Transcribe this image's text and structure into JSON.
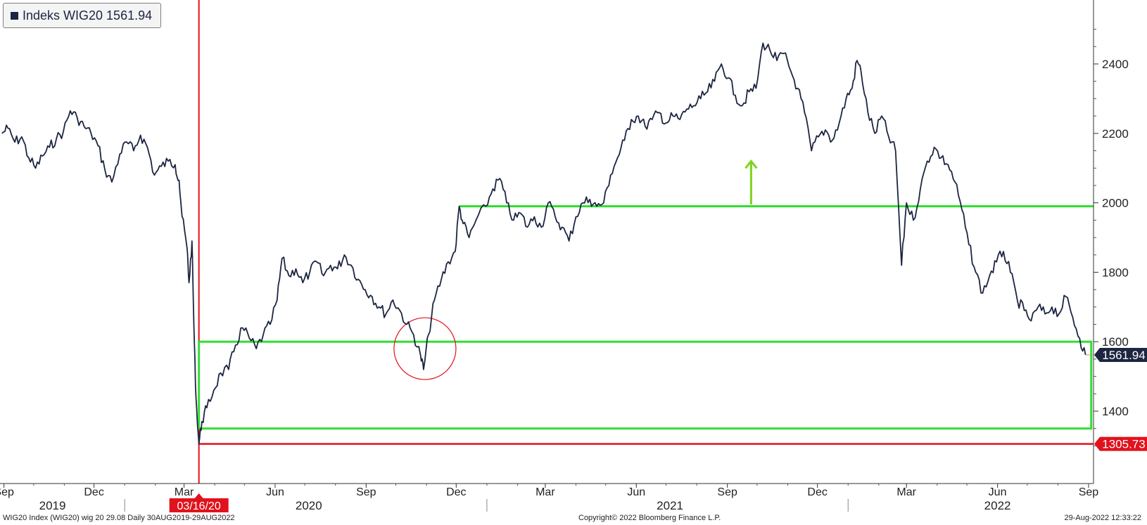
{
  "legend": {
    "label": "Indeks WIG20 1561.94"
  },
  "footer": {
    "left": "WIG20 Index (WIG20) wig 20 29.08  Daily 30AUG2019-29AUG2022",
    "center": "Copyright© 2022 Bloomberg Finance L.P.",
    "right": "29-Aug-2022 12:33:22"
  },
  "colors": {
    "series": "#1c2541",
    "support_box": "#33dd33",
    "low_line": "#e0121c",
    "event_marker": "#e0121c",
    "arrow": "#7ed321",
    "last_price_tag": "#1c2541",
    "low_tag": "#e0121c"
  },
  "annotations": {
    "event_date_label": "03/16/20",
    "last_price_label": "1561.94",
    "low_label": "1305.73"
  },
  "chart_data": {
    "type": "line",
    "title": "",
    "xlabel": "",
    "ylabel": "",
    "x_range": [
      "2019-08-30",
      "2022-08-29"
    ],
    "ylim": [
      1300,
      2500
    ],
    "yticks": [
      1400,
      1600,
      1800,
      2000,
      2200,
      2400
    ],
    "month_ticks": [
      {
        "label": "Sep",
        "date": "2019-09-01"
      },
      {
        "label": "Dec",
        "date": "2019-12-01"
      },
      {
        "label": "Mar",
        "date": "2020-03-01"
      },
      {
        "label": "Jun",
        "date": "2020-06-01"
      },
      {
        "label": "Sep",
        "date": "2020-09-01"
      },
      {
        "label": "Dec",
        "date": "2020-12-01"
      },
      {
        "label": "Mar",
        "date": "2021-03-01"
      },
      {
        "label": "Jun",
        "date": "2021-06-01"
      },
      {
        "label": "Sep",
        "date": "2021-09-01"
      },
      {
        "label": "Dec",
        "date": "2021-12-01"
      },
      {
        "label": "Mar",
        "date": "2022-03-01"
      },
      {
        "label": "Jun",
        "date": "2022-06-01"
      },
      {
        "label": "Sep",
        "date": "2022-09-01"
      }
    ],
    "year_labels": [
      {
        "label": "2019",
        "date": "2019-10-20"
      },
      {
        "label": "2020",
        "date": "2020-07-05"
      },
      {
        "label": "2021",
        "date": "2021-07-05"
      },
      {
        "label": "2022",
        "date": "2022-06-01"
      }
    ],
    "year_boundaries": [
      "2020-01-01",
      "2021-01-01",
      "2022-01-01"
    ],
    "series": [
      {
        "name": "Indeks WIG20",
        "points": [
          [
            "2019-08-30",
            2200
          ],
          [
            "2019-09-05",
            2215
          ],
          [
            "2019-09-12",
            2175
          ],
          [
            "2019-09-19",
            2190
          ],
          [
            "2019-09-26",
            2130
          ],
          [
            "2019-10-03",
            2100
          ],
          [
            "2019-10-10",
            2135
          ],
          [
            "2019-10-17",
            2160
          ],
          [
            "2019-10-24",
            2185
          ],
          [
            "2019-10-31",
            2205
          ],
          [
            "2019-11-07",
            2265
          ],
          [
            "2019-11-14",
            2245
          ],
          [
            "2019-11-21",
            2220
          ],
          [
            "2019-11-28",
            2200
          ],
          [
            "2019-12-05",
            2165
          ],
          [
            "2019-12-12",
            2095
          ],
          [
            "2019-12-19",
            2060
          ],
          [
            "2019-12-27",
            2140
          ],
          [
            "2020-01-03",
            2175
          ],
          [
            "2020-01-10",
            2150
          ],
          [
            "2020-01-17",
            2195
          ],
          [
            "2020-01-24",
            2160
          ],
          [
            "2020-01-31",
            2080
          ],
          [
            "2020-02-07",
            2105
          ],
          [
            "2020-02-14",
            2120
          ],
          [
            "2020-02-21",
            2110
          ],
          [
            "2020-02-25",
            2065
          ],
          [
            "2020-02-28",
            1960
          ],
          [
            "2020-03-04",
            1870
          ],
          [
            "2020-03-06",
            1770
          ],
          [
            "2020-03-09",
            1890
          ],
          [
            "2020-03-11",
            1640
          ],
          [
            "2020-03-13",
            1440
          ],
          [
            "2020-03-16",
            1305.73
          ],
          [
            "2020-03-19",
            1370
          ],
          [
            "2020-03-24",
            1410
          ],
          [
            "2020-03-31",
            1460
          ],
          [
            "2020-04-07",
            1510
          ],
          [
            "2020-04-15",
            1520
          ],
          [
            "2020-04-22",
            1590
          ],
          [
            "2020-04-29",
            1640
          ],
          [
            "2020-05-06",
            1610
          ],
          [
            "2020-05-13",
            1580
          ],
          [
            "2020-05-20",
            1620
          ],
          [
            "2020-05-27",
            1650
          ],
          [
            "2020-06-03",
            1720
          ],
          [
            "2020-06-08",
            1840
          ],
          [
            "2020-06-15",
            1790
          ],
          [
            "2020-06-22",
            1810
          ],
          [
            "2020-06-29",
            1770
          ],
          [
            "2020-07-06",
            1800
          ],
          [
            "2020-07-13",
            1830
          ],
          [
            "2020-07-20",
            1790
          ],
          [
            "2020-07-27",
            1820
          ],
          [
            "2020-08-03",
            1810
          ],
          [
            "2020-08-10",
            1850
          ],
          [
            "2020-08-17",
            1820
          ],
          [
            "2020-08-24",
            1780
          ],
          [
            "2020-08-31",
            1750
          ],
          [
            "2020-09-07",
            1730
          ],
          [
            "2020-09-14",
            1700
          ],
          [
            "2020-09-21",
            1680
          ],
          [
            "2020-09-28",
            1720
          ],
          [
            "2020-10-05",
            1690
          ],
          [
            "2020-10-12",
            1650
          ],
          [
            "2020-10-19",
            1620
          ],
          [
            "2020-10-26",
            1560
          ],
          [
            "2020-10-29",
            1520
          ],
          [
            "2020-11-03",
            1620
          ],
          [
            "2020-11-09",
            1720
          ],
          [
            "2020-11-16",
            1780
          ],
          [
            "2020-11-23",
            1830
          ],
          [
            "2020-11-30",
            1860
          ],
          [
            "2020-12-04",
            1990
          ],
          [
            "2020-12-08",
            1940
          ],
          [
            "2020-12-14",
            1900
          ],
          [
            "2020-12-21",
            1950
          ],
          [
            "2020-12-31",
            1990
          ],
          [
            "2021-01-07",
            2040
          ],
          [
            "2021-01-14",
            2070
          ],
          [
            "2021-01-21",
            2000
          ],
          [
            "2021-01-28",
            1950
          ],
          [
            "2021-02-04",
            1970
          ],
          [
            "2021-02-11",
            1930
          ],
          [
            "2021-02-18",
            1960
          ],
          [
            "2021-02-25",
            1930
          ],
          [
            "2021-03-04",
            2000
          ],
          [
            "2021-03-11",
            1960
          ],
          [
            "2021-03-18",
            1930
          ],
          [
            "2021-03-25",
            1890
          ],
          [
            "2021-04-01",
            1960
          ],
          [
            "2021-04-08",
            2000
          ],
          [
            "2021-04-15",
            2010
          ],
          [
            "2021-04-22",
            1990
          ],
          [
            "2021-04-29",
            2000
          ],
          [
            "2021-05-06",
            2080
          ],
          [
            "2021-05-13",
            2130
          ],
          [
            "2021-05-20",
            2180
          ],
          [
            "2021-05-27",
            2240
          ],
          [
            "2021-06-03",
            2250
          ],
          [
            "2021-06-10",
            2220
          ],
          [
            "2021-06-17",
            2240
          ],
          [
            "2021-06-24",
            2260
          ],
          [
            "2021-07-01",
            2230
          ],
          [
            "2021-07-08",
            2250
          ],
          [
            "2021-07-15",
            2240
          ],
          [
            "2021-07-22",
            2270
          ],
          [
            "2021-07-29",
            2280
          ],
          [
            "2021-08-05",
            2300
          ],
          [
            "2021-08-12",
            2320
          ],
          [
            "2021-08-19",
            2350
          ],
          [
            "2021-08-26",
            2400
          ],
          [
            "2021-09-02",
            2360
          ],
          [
            "2021-09-09",
            2310
          ],
          [
            "2021-09-16",
            2280
          ],
          [
            "2021-09-23",
            2320
          ],
          [
            "2021-09-30",
            2330
          ],
          [
            "2021-10-07",
            2460
          ],
          [
            "2021-10-14",
            2440
          ],
          [
            "2021-10-21",
            2410
          ],
          [
            "2021-10-28",
            2430
          ],
          [
            "2021-11-04",
            2380
          ],
          [
            "2021-11-11",
            2330
          ],
          [
            "2021-11-18",
            2260
          ],
          [
            "2021-11-25",
            2150
          ],
          [
            "2021-12-02",
            2190
          ],
          [
            "2021-12-09",
            2210
          ],
          [
            "2021-12-16",
            2180
          ],
          [
            "2021-12-23",
            2230
          ],
          [
            "2021-12-30",
            2300
          ],
          [
            "2022-01-05",
            2330
          ],
          [
            "2022-01-10",
            2410
          ],
          [
            "2022-01-14",
            2380
          ],
          [
            "2022-01-21",
            2260
          ],
          [
            "2022-01-28",
            2200
          ],
          [
            "2022-02-04",
            2250
          ],
          [
            "2022-02-11",
            2190
          ],
          [
            "2022-02-18",
            2150
          ],
          [
            "2022-02-24",
            1820
          ],
          [
            "2022-03-01",
            2000
          ],
          [
            "2022-03-08",
            1950
          ],
          [
            "2022-03-15",
            2040
          ],
          [
            "2022-03-22",
            2120
          ],
          [
            "2022-03-29",
            2160
          ],
          [
            "2022-04-05",
            2130
          ],
          [
            "2022-04-12",
            2110
          ],
          [
            "2022-04-19",
            2060
          ],
          [
            "2022-04-26",
            1980
          ],
          [
            "2022-05-03",
            1880
          ],
          [
            "2022-05-10",
            1800
          ],
          [
            "2022-05-17",
            1740
          ],
          [
            "2022-05-24",
            1790
          ],
          [
            "2022-05-31",
            1830
          ],
          [
            "2022-06-07",
            1860
          ],
          [
            "2022-06-14",
            1800
          ],
          [
            "2022-06-21",
            1720
          ],
          [
            "2022-06-28",
            1690
          ],
          [
            "2022-07-05",
            1660
          ],
          [
            "2022-07-12",
            1700
          ],
          [
            "2022-07-19",
            1680
          ],
          [
            "2022-07-26",
            1700
          ],
          [
            "2022-08-02",
            1680
          ],
          [
            "2022-08-09",
            1730
          ],
          [
            "2022-08-16",
            1670
          ],
          [
            "2022-08-23",
            1610
          ],
          [
            "2022-08-29",
            1561.94
          ]
        ]
      }
    ],
    "annotation_lines": {
      "event_date": "2020-03-16",
      "low_value": 1305.73,
      "last_value": 1561.94,
      "support_box": {
        "x_start": "2020-03-16",
        "x_end": "2022-08-29",
        "y_low": 1350,
        "y_high": 1600
      },
      "resistance_line": {
        "x_start": "2020-12-04",
        "x_end": "2022-08-29",
        "y": 1990
      },
      "arrow": {
        "date": "2021-09-25",
        "y_from": 1995,
        "y_to": 2120
      },
      "circle": {
        "date": "2020-10-29",
        "y": 1580
      }
    }
  }
}
